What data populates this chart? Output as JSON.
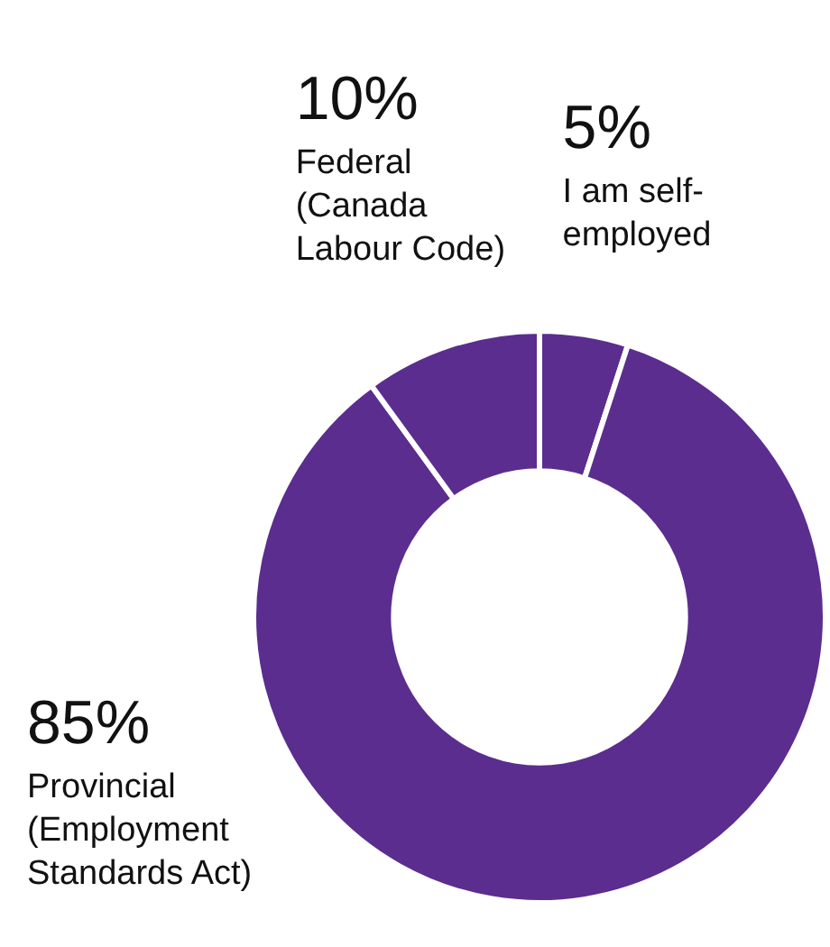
{
  "chart_data": {
    "type": "donut",
    "categories": [
      "I am self-employed",
      "Provincial (Employment Standards Act)",
      "Federal (Canada Labour Code)"
    ],
    "values": [
      5,
      85,
      10
    ],
    "value_labels": [
      "5%",
      "85%",
      "10%"
    ],
    "colors": [
      "#5b2d8e",
      "#5b2d8e",
      "#5b2d8e"
    ],
    "legend": false
  }
}
